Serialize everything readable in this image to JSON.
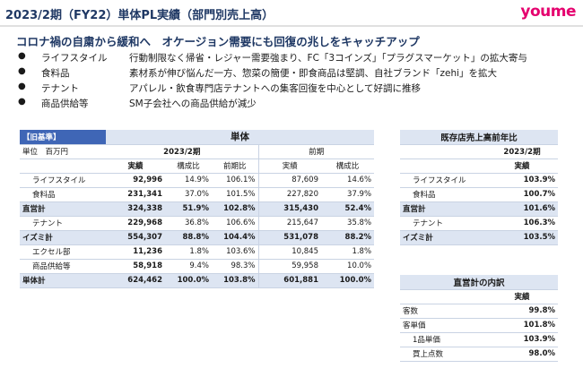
{
  "header": {
    "title": "2023/2期（FY22）単体PL実績（部門別売上高）",
    "logo": "youme"
  },
  "headline": "コロナ禍の自粛から緩和へ　オケージョン需要にも回復の兆しをキャッチアップ",
  "bullets": [
    {
      "category": "ライフスタイル",
      "text": "行動制限なく帰省・レジャー需要強まり、FC「3コインズ」「プラグスマーケット」の拡大寄与"
    },
    {
      "category": "食料品",
      "text": "素材系が伸び悩んだ一方、惣菜の簡便・即食商品は堅調、自社ブランド「zehi」を拡大"
    },
    {
      "category": "テナント",
      "text": "アパレル・飲食専門店テナントへの集客回復を中心として好調に推移"
    },
    {
      "category": "商品供給等",
      "text": "SM子会社への商品供給が減少"
    }
  ],
  "main_table": {
    "basis_label": "【旧基準】",
    "section_title": "単体",
    "unit_label": "単位　百万円",
    "period_current": "2023/2期",
    "period_prior": "前期",
    "col_headers": {
      "actual": "実績",
      "share": "構成比",
      "yoy": "前期比",
      "prior_actual": "実績",
      "prior_share": "構成比"
    },
    "rows": [
      {
        "label": "ライフスタイル",
        "actual": "92,996",
        "share": "14.9%",
        "yoy": "106.1%",
        "prior_actual": "87,609",
        "prior_share": "14.6%"
      },
      {
        "label": "食料品",
        "actual": "231,341",
        "share": "37.0%",
        "yoy": "101.5%",
        "prior_actual": "227,820",
        "prior_share": "37.9%"
      },
      {
        "label": "直営計",
        "actual": "324,338",
        "share": "51.9%",
        "yoy": "102.8%",
        "prior_actual": "315,430",
        "prior_share": "52.4%"
      },
      {
        "label": "テナント",
        "actual": "229,968",
        "share": "36.8%",
        "yoy": "106.6%",
        "prior_actual": "215,647",
        "prior_share": "35.8%"
      },
      {
        "label": "イズミ計",
        "actual": "554,307",
        "share": "88.8%",
        "yoy": "104.4%",
        "prior_actual": "531,078",
        "prior_share": "88.2%"
      },
      {
        "label": "エクセル部",
        "actual": "11,236",
        "share": "1.8%",
        "yoy": "103.6%",
        "prior_actual": "10,845",
        "prior_share": "1.8%"
      },
      {
        "label": "商品供給等",
        "actual": "58,918",
        "share": "9.4%",
        "yoy": "98.3%",
        "prior_actual": "59,958",
        "prior_share": "10.0%"
      },
      {
        "label": "単体計",
        "actual": "624,462",
        "share": "100.0%",
        "yoy": "103.8%",
        "prior_actual": "601,881",
        "prior_share": "100.0%"
      }
    ]
  },
  "existing_store_table": {
    "title": "既存店売上高前年比",
    "period": "2023/2期",
    "col_header": "実績",
    "rows": [
      {
        "label": "ライフスタイル",
        "value": "103.9%"
      },
      {
        "label": "食料品",
        "value": "100.7%"
      },
      {
        "label": "直営計",
        "value": "101.6%"
      },
      {
        "label": "テナント",
        "value": "106.3%"
      },
      {
        "label": "イズミ計",
        "value": "103.5%"
      }
    ]
  },
  "breakdown_table": {
    "title": "直営計の内訳",
    "col_header": "実績",
    "rows": [
      {
        "label": "客数",
        "value": "99.8%"
      },
      {
        "label": "客単価",
        "value": "101.8%"
      },
      {
        "label": "1品単価",
        "value": "103.9%"
      },
      {
        "label": "買上点数",
        "value": "98.0%"
      }
    ]
  }
}
